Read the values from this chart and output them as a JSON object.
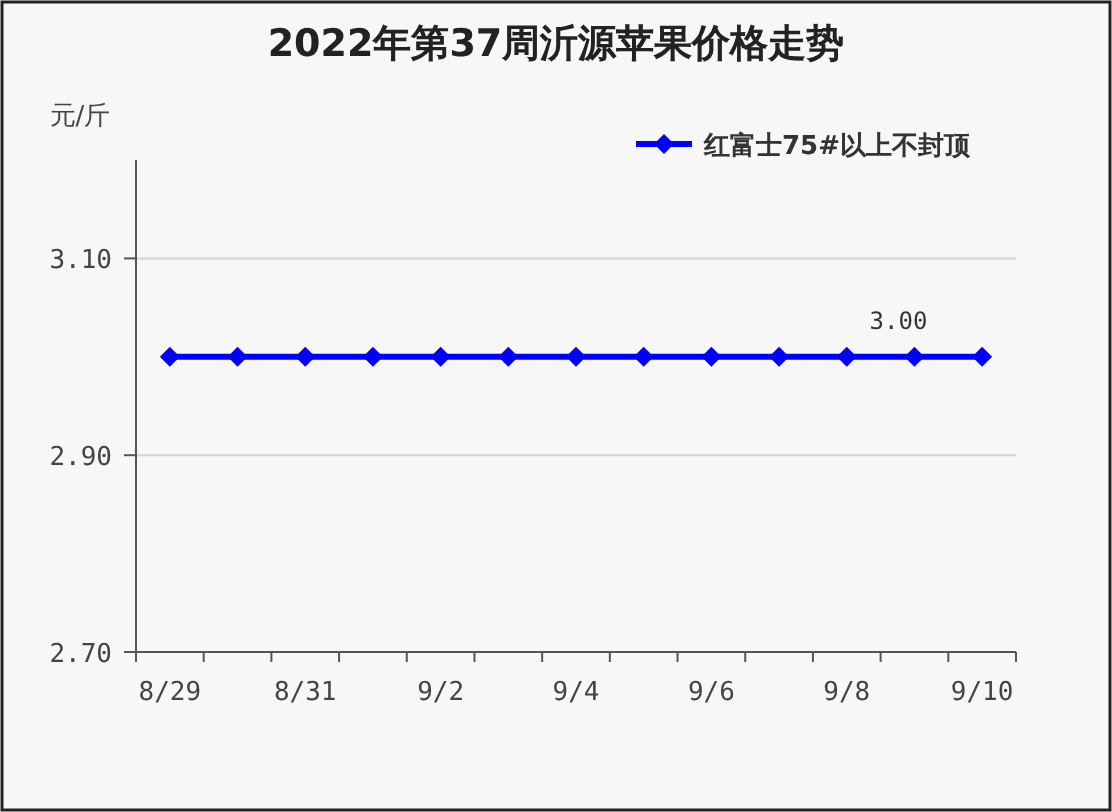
{
  "chart_data": {
    "type": "line",
    "title": "2022年第37周沂源苹果价格走势",
    "ylabel": "元/斤",
    "categories": [
      "8/29",
      null,
      "8/31",
      null,
      "9/2",
      null,
      "9/4",
      null,
      "9/6",
      null,
      "9/8",
      null,
      "9/10"
    ],
    "series": [
      {
        "name": "红富士75#以上不封顶",
        "color": "#0000ff",
        "values": [
          3.0,
          3.0,
          3.0,
          3.0,
          3.0,
          3.0,
          3.0,
          3.0,
          3.0,
          3.0,
          3.0,
          3.0,
          3.0
        ],
        "value_labels": [
          null,
          null,
          null,
          null,
          null,
          null,
          null,
          null,
          null,
          null,
          null,
          "3.00",
          null
        ]
      }
    ],
    "ylim": [
      2.7,
      3.2
    ],
    "yticks": [
      {
        "value": 2.7,
        "label": "2.70"
      },
      {
        "value": 2.9,
        "label": "2.90"
      },
      {
        "value": 3.1,
        "label": "3.10"
      }
    ],
    "grid": "y",
    "legend": "top right",
    "marker": "diamond",
    "line_style": "solid"
  }
}
